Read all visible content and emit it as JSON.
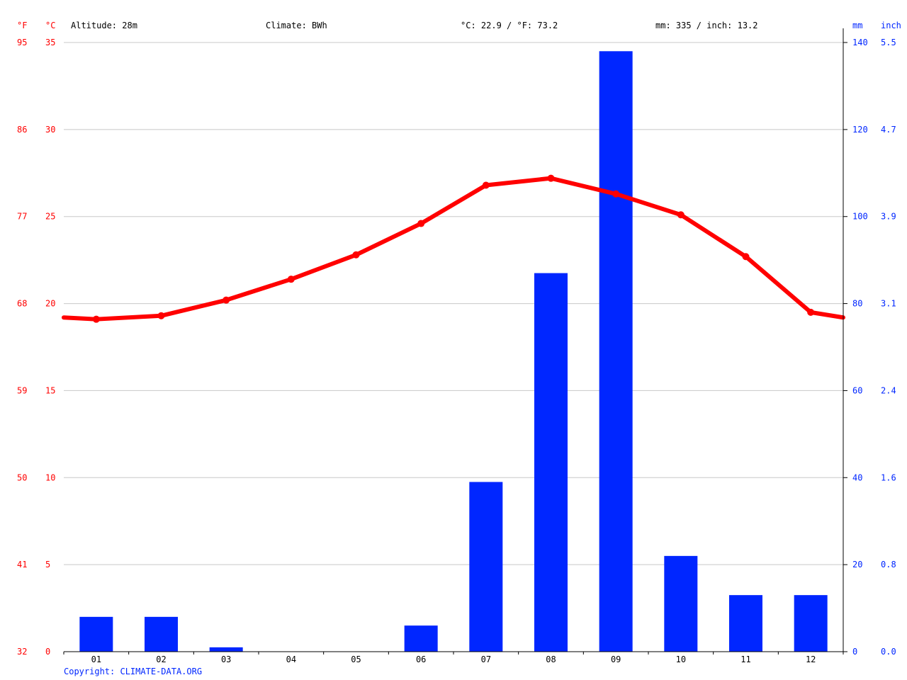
{
  "header": {
    "altitude": "Altitude: 28m",
    "climate": "Climate: BWh",
    "temp_avg": "°C: 22.9 / °F: 73.2",
    "precip_total": "mm: 335 / inch: 13.2"
  },
  "axis_units": {
    "fahrenheit": "°F",
    "celsius": "°C",
    "mm": "mm",
    "inch": "inch"
  },
  "copyright": "Copyright: CLIMATE-DATA.ORG",
  "colors": {
    "temperature": "#ff0000",
    "precipitation": "#0026ff",
    "grid": "#c8c8c8",
    "axis": "#000000"
  },
  "chart_data": {
    "type": "bar",
    "categories": [
      "01",
      "02",
      "03",
      "04",
      "05",
      "06",
      "07",
      "08",
      "09",
      "10",
      "11",
      "12"
    ],
    "series": [
      {
        "type": "bar",
        "axis": "right",
        "values": [
          8,
          8,
          1,
          0,
          0,
          6,
          39,
          87,
          138,
          22,
          13,
          13
        ]
      },
      {
        "type": "line",
        "axis": "left",
        "values": [
          19.1,
          19.3,
          20.2,
          21.4,
          22.8,
          24.6,
          26.8,
          27.2,
          26.3,
          25.1,
          22.7,
          19.5
        ]
      }
    ],
    "y_left": {
      "celsius_ticks": [
        0,
        5,
        10,
        15,
        20,
        25,
        30,
        35
      ],
      "fahrenheit_ticks": [
        "32",
        "41",
        "50",
        "59",
        "68",
        "77",
        "86",
        "95"
      ],
      "range": [
        0,
        35
      ]
    },
    "y_right": {
      "mm_ticks": [
        0,
        20,
        40,
        60,
        80,
        100,
        120,
        140
      ],
      "inch_ticks": [
        "0.0",
        "0.8",
        "1.6",
        "2.4",
        "3.1",
        "3.9",
        "4.7",
        "5.5"
      ],
      "range": [
        0,
        140
      ]
    },
    "grid": true
  }
}
